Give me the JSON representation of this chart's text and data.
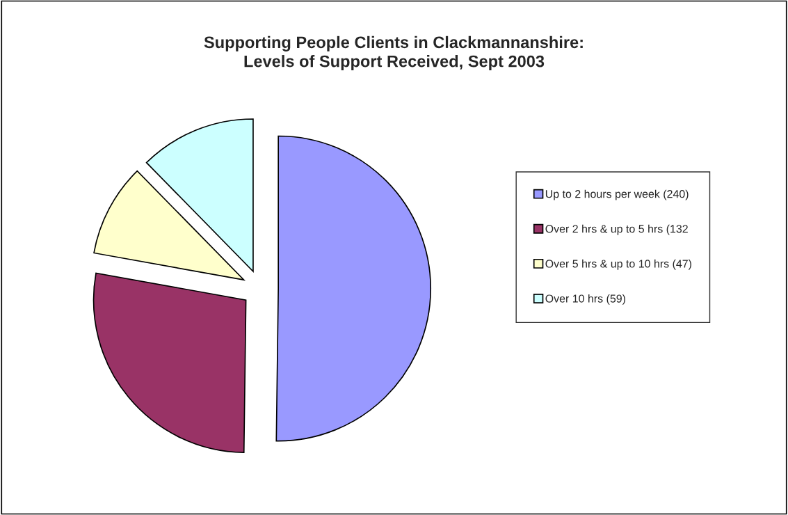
{
  "chart_data": {
    "type": "pie",
    "title": "Supporting People Clients in Clackmannanshire:\nLevels of Support Received, Sept 2003",
    "categories": [
      "Up to 2 hours per week (240)",
      "Over 2 hrs & up to 5 hrs (132",
      "Over 5 hrs & up to 10 hrs (47)",
      "Over 10 hrs (59)"
    ],
    "values": [
      240,
      132,
      47,
      59
    ],
    "colors": [
      "#9999ff",
      "#993366",
      "#ffffcc",
      "#ccffff"
    ],
    "legend": "right"
  }
}
